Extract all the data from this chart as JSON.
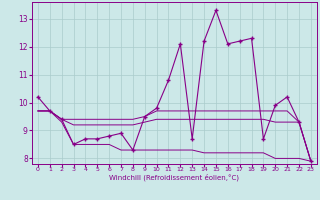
{
  "xlabel": "Windchill (Refroidissement éolien,°C)",
  "background_color": "#cce8e8",
  "grid_color": "#aacccc",
  "line_color": "#880088",
  "x": [
    0,
    1,
    2,
    3,
    4,
    5,
    6,
    7,
    8,
    9,
    10,
    11,
    12,
    13,
    14,
    15,
    16,
    17,
    18,
    19,
    20,
    21,
    22,
    23
  ],
  "line1": [
    10.2,
    9.7,
    9.4,
    8.5,
    8.7,
    8.7,
    8.8,
    8.9,
    8.3,
    9.5,
    9.8,
    10.8,
    12.1,
    8.7,
    12.2,
    13.3,
    12.1,
    12.2,
    12.3,
    8.7,
    9.9,
    10.2,
    9.3,
    7.9
  ],
  "line2": [
    9.7,
    9.7,
    9.4,
    9.4,
    9.4,
    9.4,
    9.4,
    9.4,
    9.4,
    9.5,
    9.7,
    9.7,
    9.7,
    9.7,
    9.7,
    9.7,
    9.7,
    9.7,
    9.7,
    9.7,
    9.7,
    9.7,
    9.3,
    7.9
  ],
  "line3": [
    9.7,
    9.7,
    9.4,
    9.2,
    9.2,
    9.2,
    9.2,
    9.2,
    9.2,
    9.3,
    9.4,
    9.4,
    9.4,
    9.4,
    9.4,
    9.4,
    9.4,
    9.4,
    9.4,
    9.4,
    9.3,
    9.3,
    9.3,
    7.9
  ],
  "line4": [
    9.7,
    9.7,
    9.3,
    8.5,
    8.5,
    8.5,
    8.5,
    8.3,
    8.3,
    8.3,
    8.3,
    8.3,
    8.3,
    8.3,
    8.2,
    8.2,
    8.2,
    8.2,
    8.2,
    8.2,
    8.0,
    8.0,
    8.0,
    7.9
  ],
  "ylim": [
    7.8,
    13.6
  ],
  "yticks": [
    8,
    9,
    10,
    11,
    12,
    13
  ],
  "xticks": [
    0,
    1,
    2,
    3,
    4,
    5,
    6,
    7,
    8,
    9,
    10,
    11,
    12,
    13,
    14,
    15,
    16,
    17,
    18,
    19,
    20,
    21,
    22,
    23
  ]
}
